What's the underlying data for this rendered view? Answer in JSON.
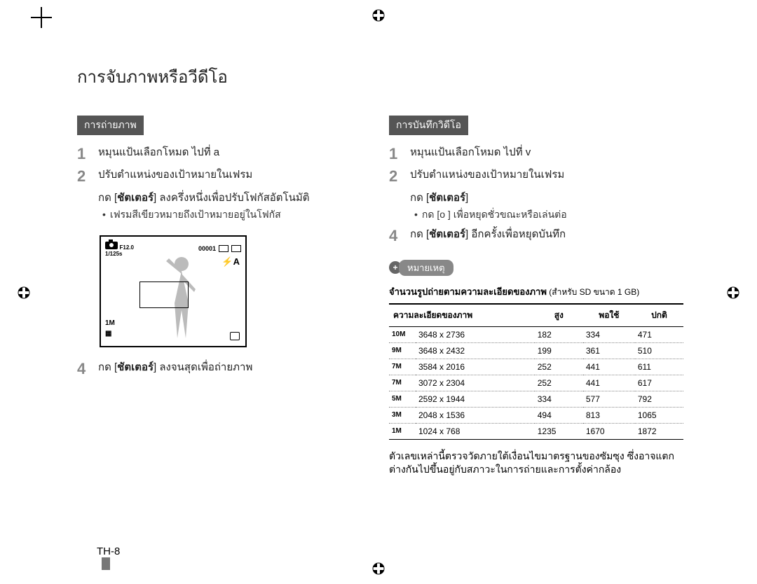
{
  "page": {
    "title": "การจับภาพหรือวีดีโอ",
    "number": "TH-8"
  },
  "left": {
    "section_label": "การถ่ายภาพ",
    "steps": [
      {
        "n": "1",
        "text": "หมุนแป้นเลือกโหมด ไปที่ a"
      },
      {
        "n": "2",
        "text": "ปรับตำแหน่งของเป้าหมายในเฟรม"
      },
      {
        "n": "3",
        "text_prefix": "กด [",
        "bold": "ชัตเตอร์",
        "text_suffix": "] ลงครึ่งหนึ่งเพื่อปรับโฟกัสอัตโนมัติ",
        "sub": "เฟรมสีเขียวหมายถึงเป้าหมายอยู่ในโฟกัส"
      },
      {
        "n": "4",
        "text_prefix": "กด [",
        "bold": "ชัตเตอร์",
        "text_suffix": "] ลงจนสุดเพื่อถ่ายภาพ"
      }
    ],
    "lcd": {
      "aperture": "F12.0",
      "shutter": "1/125s",
      "counter": "00001",
      "flash_auto": "⚡A",
      "size": "1M"
    }
  },
  "right": {
    "section_label": "การบันทึกวิดีโอ",
    "steps": [
      {
        "n": "1",
        "text": "หมุนแป้นเลือกโหมด ไปที่ v"
      },
      {
        "n": "2",
        "text": "ปรับตำแหน่งของเป้าหมายในเฟรม"
      },
      {
        "n": "3",
        "text_prefix": "กด [",
        "bold": "ชัตเตอร์",
        "text_suffix": "]",
        "sub_prefix": "กด [o    ] เพื่อหยุดชั่วขณะหรือเล่นต่อ"
      },
      {
        "n": "4",
        "text_prefix": "กด [",
        "bold": "ชัตเตอร์",
        "text_suffix": "] อีกครั้งเพื่อหยุดบันทึก"
      }
    ],
    "note_label": "หมายเหตุ",
    "table": {
      "caption_bold": "จำนวนรูปถ่ายตามความละเอียดของภาพ",
      "caption_thin": " (สำหรับ SD ขนาด 1 GB)",
      "headers": [
        "ความละเอียดของภาพ",
        "สูง",
        "พอใช้",
        "ปกติ"
      ],
      "rows": [
        {
          "icon": "10M",
          "res": "3648 x 2736",
          "hi": "182",
          "mid": "334",
          "lo": "471"
        },
        {
          "icon": "9M",
          "res": "3648 x 2432",
          "hi": "199",
          "mid": "361",
          "lo": "510"
        },
        {
          "icon": "7M",
          "res": "3584 x 2016",
          "hi": "252",
          "mid": "441",
          "lo": "611"
        },
        {
          "icon": "7M",
          "res": "3072 x 2304",
          "hi": "252",
          "mid": "441",
          "lo": "617"
        },
        {
          "icon": "5M",
          "res": "2592 x 1944",
          "hi": "334",
          "mid": "577",
          "lo": "792"
        },
        {
          "icon": "3M",
          "res": "2048 x 1536",
          "hi": "494",
          "mid": "813",
          "lo": "1065"
        },
        {
          "icon": "1M",
          "res": "1024 x 768",
          "hi": "1235",
          "mid": "1670",
          "lo": "1872"
        }
      ]
    },
    "footer_note": "ตัวเลขเหล่านี้ตรวจวัดภายใต้เงื่อนไขมาตรฐานของซัมซุง ซึ่งอาจแตกต่างกันไปขึ้นอยู่กับสภาวะในการถ่ายและการตั้งค่ากล้อง"
  }
}
